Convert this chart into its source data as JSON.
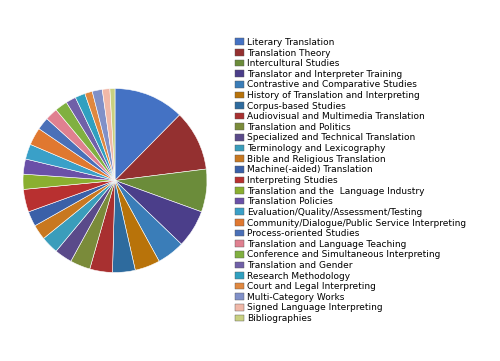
{
  "categories": [
    "Literary Translation",
    "Translation Theory",
    "Intercultural Studies",
    "Translator and Interpreter Training",
    "Contrastive and Comparative Studies",
    "History of Translation and Interpreting",
    "Corpus-based Studies",
    "Audiovisual and Multimedia Translation",
    "Translation and Politics",
    "Specialized and Technical Translation",
    "Terminology and Lexicography",
    "Bible and Religious Translation",
    "Machine(-aided) Translation",
    "Interpreting Studies",
    "Translation and the  Language Industry",
    "Translation Policies",
    "Evaluation/Quality/Assessment/Testing",
    "Community/Dialogue/Public Service Interpreting",
    "Process-oriented Studies",
    "Translation and Language Teaching",
    "Conference and Simultaneous Interpreting",
    "Translation and Gender",
    "Research Methodology",
    "Court and Legal Interpreting",
    "Multi-Category Works",
    "Signed Language Interpreting",
    "Bibliographies"
  ],
  "values": [
    14.0,
    12.0,
    8.5,
    7.5,
    5.5,
    5.0,
    4.5,
    4.5,
    4.0,
    3.5,
    3.5,
    3.0,
    3.0,
    4.5,
    3.0,
    3.0,
    3.0,
    3.5,
    2.5,
    2.5,
    2.5,
    2.0,
    2.0,
    1.5,
    2.0,
    1.5,
    1.0
  ],
  "colors": [
    "#4472C4",
    "#943030",
    "#6B8C3A",
    "#4B3E8A",
    "#3A7DB8",
    "#B8730A",
    "#2E6B9E",
    "#A83030",
    "#7A8B3A",
    "#5A4A8A",
    "#3A9DBB",
    "#C87820",
    "#3A60A8",
    "#B83030",
    "#8AAF30",
    "#6A50A8",
    "#3AA0C8",
    "#E07830",
    "#4A70B8",
    "#E08090",
    "#80B040",
    "#7060A8",
    "#30A0C0",
    "#E08840",
    "#8090C8",
    "#F0B8A8",
    "#C8D080"
  ],
  "legend_fontsize": 6.5,
  "figsize": [
    5.0,
    3.61
  ],
  "dpi": 100
}
